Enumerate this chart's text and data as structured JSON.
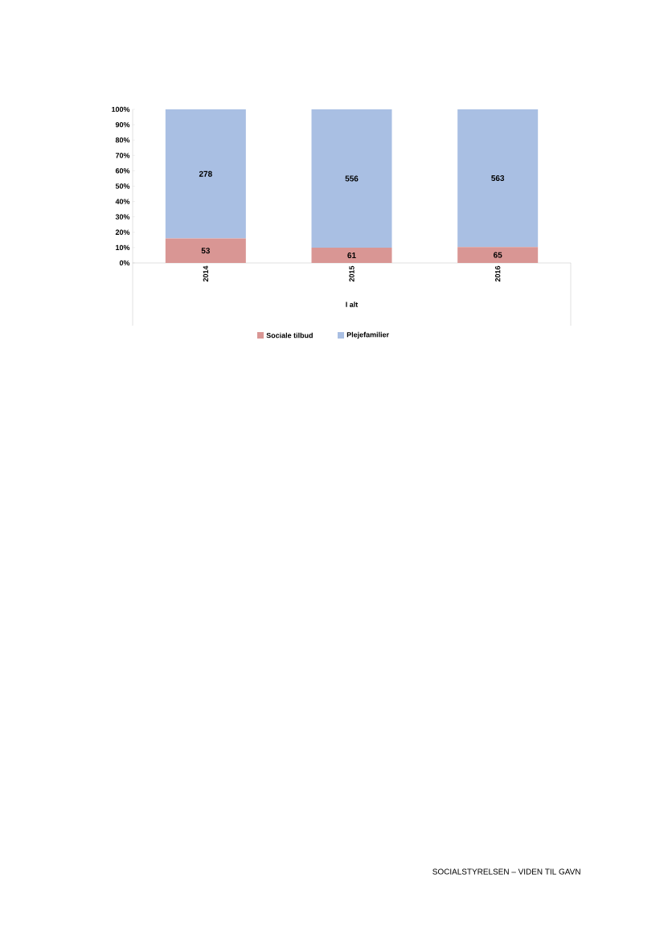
{
  "chart_data": {
    "type": "bar",
    "stacked": true,
    "categories": [
      "2014",
      "2015",
      "2016"
    ],
    "xlabel": "I alt",
    "ylim": [
      0,
      100
    ],
    "yticks": [
      {
        "value": 0,
        "label": "0%"
      },
      {
        "value": 10,
        "label": "10%"
      },
      {
        "value": 20,
        "label": "20%"
      },
      {
        "value": 30,
        "label": "30%"
      },
      {
        "value": 40,
        "label": "40%"
      },
      {
        "value": 50,
        "label": "50%"
      },
      {
        "value": 60,
        "label": "60%"
      },
      {
        "value": 70,
        "label": "70%"
      },
      {
        "value": 80,
        "label": "80%"
      },
      {
        "value": 90,
        "label": "90%"
      },
      {
        "value": 100,
        "label": "100%"
      }
    ],
    "legend": "bottom",
    "grid": false,
    "series": [
      {
        "name": "Sociale tilbud",
        "color": "#d99694",
        "values": [
          16.0,
          9.9,
          10.4
        ]
      },
      {
        "name": "Plejefamilier",
        "color": "#a9bfe3",
        "values": [
          84.0,
          90.1,
          89.6
        ]
      }
    ],
    "annotations": [
      {
        "text": "53",
        "x": "2014",
        "y": 16.0
      },
      {
        "text": "61",
        "x": "2015",
        "y": 9.9
      },
      {
        "text": "65",
        "x": "2016",
        "y": 10.4
      },
      "278",
      "556",
      "563",
      "SOCIALSTYRELSEN – VIDEN TIL GAVN"
    ]
  }
}
